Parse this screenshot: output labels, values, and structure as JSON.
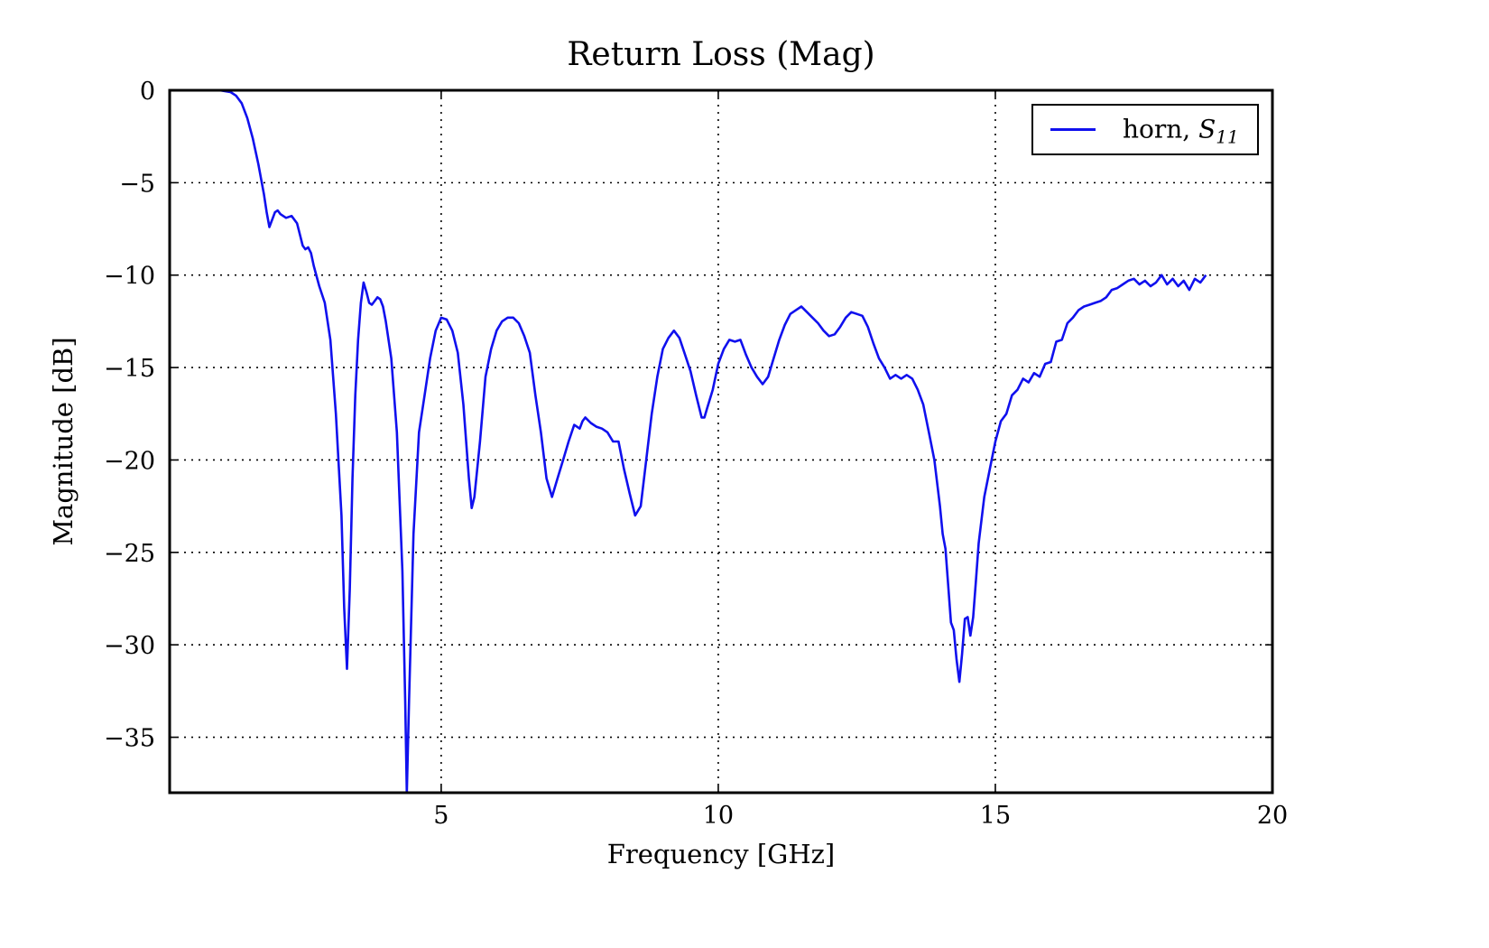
{
  "chart_data": {
    "type": "line",
    "title": "Return Loss (Mag)",
    "xlabel": "Frequency [GHz]",
    "ylabel": "Magnitude [dB]",
    "xlim": [
      0.1,
      20
    ],
    "ylim": [
      -38,
      0
    ],
    "xticks": [
      5,
      10,
      15,
      20
    ],
    "xtick_labels": [
      "5",
      "10",
      "15",
      "20"
    ],
    "yticks": [
      0,
      -5,
      -10,
      -15,
      -20,
      -25,
      -30,
      -35
    ],
    "ytick_labels": [
      "0",
      "−5",
      "−10",
      "−15",
      "−20",
      "−25",
      "−30",
      "−35"
    ],
    "grid": true,
    "legend_position": "top-right",
    "colors": {
      "series": "#1010ee",
      "grid": "#000000",
      "frame": "#000000"
    },
    "series": [
      {
        "name": "horn, S11",
        "legend_label": "horn, ",
        "legend_symbol": "S",
        "legend_subscript": "11",
        "points": [
          [
            0.1,
            0
          ],
          [
            0.5,
            0
          ],
          [
            1.0,
            0
          ],
          [
            1.2,
            -0.1
          ],
          [
            1.3,
            -0.3
          ],
          [
            1.4,
            -0.7
          ],
          [
            1.5,
            -1.5
          ],
          [
            1.6,
            -2.6
          ],
          [
            1.7,
            -4.0
          ],
          [
            1.8,
            -5.6
          ],
          [
            1.85,
            -6.6
          ],
          [
            1.9,
            -7.4
          ],
          [
            1.95,
            -7.0
          ],
          [
            2.0,
            -6.6
          ],
          [
            2.05,
            -6.5
          ],
          [
            2.1,
            -6.7
          ],
          [
            2.2,
            -6.9
          ],
          [
            2.3,
            -6.8
          ],
          [
            2.4,
            -7.2
          ],
          [
            2.45,
            -7.8
          ],
          [
            2.5,
            -8.4
          ],
          [
            2.55,
            -8.6
          ],
          [
            2.6,
            -8.5
          ],
          [
            2.65,
            -8.8
          ],
          [
            2.7,
            -9.5
          ],
          [
            2.8,
            -10.6
          ],
          [
            2.9,
            -11.5
          ],
          [
            3.0,
            -13.5
          ],
          [
            3.1,
            -17.5
          ],
          [
            3.2,
            -23.0
          ],
          [
            3.25,
            -28.0
          ],
          [
            3.3,
            -31.3
          ],
          [
            3.35,
            -27.0
          ],
          [
            3.4,
            -21.0
          ],
          [
            3.45,
            -16.5
          ],
          [
            3.5,
            -13.5
          ],
          [
            3.55,
            -11.5
          ],
          [
            3.6,
            -10.4
          ],
          [
            3.65,
            -10.9
          ],
          [
            3.7,
            -11.5
          ],
          [
            3.75,
            -11.6
          ],
          [
            3.8,
            -11.4
          ],
          [
            3.85,
            -11.2
          ],
          [
            3.9,
            -11.3
          ],
          [
            3.95,
            -11.7
          ],
          [
            4.0,
            -12.5
          ],
          [
            4.1,
            -14.5
          ],
          [
            4.2,
            -18.5
          ],
          [
            4.3,
            -26.0
          ],
          [
            4.35,
            -33.0
          ],
          [
            4.38,
            -38.0
          ],
          [
            4.42,
            -33.0
          ],
          [
            4.5,
            -24.0
          ],
          [
            4.6,
            -18.5
          ],
          [
            4.7,
            -16.5
          ],
          [
            4.8,
            -14.5
          ],
          [
            4.9,
            -13.0
          ],
          [
            5.0,
            -12.3
          ],
          [
            5.1,
            -12.4
          ],
          [
            5.2,
            -13.0
          ],
          [
            5.3,
            -14.2
          ],
          [
            5.4,
            -17.0
          ],
          [
            5.5,
            -21.0
          ],
          [
            5.55,
            -22.6
          ],
          [
            5.6,
            -22.0
          ],
          [
            5.7,
            -19.0
          ],
          [
            5.8,
            -15.5
          ],
          [
            5.9,
            -14.0
          ],
          [
            6.0,
            -13.0
          ],
          [
            6.1,
            -12.5
          ],
          [
            6.2,
            -12.3
          ],
          [
            6.3,
            -12.3
          ],
          [
            6.4,
            -12.6
          ],
          [
            6.5,
            -13.3
          ],
          [
            6.6,
            -14.2
          ],
          [
            6.7,
            -16.5
          ],
          [
            6.8,
            -18.5
          ],
          [
            6.9,
            -21.0
          ],
          [
            7.0,
            -22.0
          ],
          [
            7.1,
            -21.0
          ],
          [
            7.2,
            -20.0
          ],
          [
            7.3,
            -19.0
          ],
          [
            7.4,
            -18.1
          ],
          [
            7.5,
            -18.3
          ],
          [
            7.55,
            -17.9
          ],
          [
            7.6,
            -17.7
          ],
          [
            7.7,
            -18.0
          ],
          [
            7.8,
            -18.2
          ],
          [
            7.9,
            -18.3
          ],
          [
            8.0,
            -18.5
          ],
          [
            8.1,
            -19.0
          ],
          [
            8.2,
            -19.0
          ],
          [
            8.3,
            -20.5
          ],
          [
            8.4,
            -21.8
          ],
          [
            8.5,
            -23.0
          ],
          [
            8.6,
            -22.5
          ],
          [
            8.7,
            -20.0
          ],
          [
            8.8,
            -17.5
          ],
          [
            8.9,
            -15.5
          ],
          [
            9.0,
            -14.0
          ],
          [
            9.1,
            -13.4
          ],
          [
            9.2,
            -13.0
          ],
          [
            9.3,
            -13.4
          ],
          [
            9.4,
            -14.3
          ],
          [
            9.5,
            -15.2
          ],
          [
            9.6,
            -16.5
          ],
          [
            9.7,
            -17.7
          ],
          [
            9.75,
            -17.7
          ],
          [
            9.8,
            -17.2
          ],
          [
            9.9,
            -16.2
          ],
          [
            10.0,
            -14.8
          ],
          [
            10.1,
            -14.0
          ],
          [
            10.2,
            -13.5
          ],
          [
            10.3,
            -13.6
          ],
          [
            10.4,
            -13.5
          ],
          [
            10.5,
            -14.3
          ],
          [
            10.6,
            -15.0
          ],
          [
            10.7,
            -15.5
          ],
          [
            10.8,
            -15.9
          ],
          [
            10.9,
            -15.5
          ],
          [
            11.0,
            -14.5
          ],
          [
            11.1,
            -13.5
          ],
          [
            11.2,
            -12.7
          ],
          [
            11.3,
            -12.1
          ],
          [
            11.4,
            -11.9
          ],
          [
            11.5,
            -11.7
          ],
          [
            11.6,
            -12.0
          ],
          [
            11.7,
            -12.3
          ],
          [
            11.8,
            -12.6
          ],
          [
            11.9,
            -13.0
          ],
          [
            12.0,
            -13.3
          ],
          [
            12.1,
            -13.2
          ],
          [
            12.2,
            -12.8
          ],
          [
            12.3,
            -12.3
          ],
          [
            12.4,
            -12.0
          ],
          [
            12.5,
            -12.1
          ],
          [
            12.6,
            -12.2
          ],
          [
            12.7,
            -12.8
          ],
          [
            12.8,
            -13.7
          ],
          [
            12.9,
            -14.5
          ],
          [
            13.0,
            -15.0
          ],
          [
            13.1,
            -15.6
          ],
          [
            13.2,
            -15.4
          ],
          [
            13.3,
            -15.6
          ],
          [
            13.4,
            -15.4
          ],
          [
            13.5,
            -15.6
          ],
          [
            13.6,
            -16.2
          ],
          [
            13.7,
            -17.0
          ],
          [
            13.8,
            -18.5
          ],
          [
            13.9,
            -20.0
          ],
          [
            14.0,
            -22.5
          ],
          [
            14.05,
            -24.0
          ],
          [
            14.1,
            -24.8
          ],
          [
            14.2,
            -28.8
          ],
          [
            14.25,
            -29.2
          ],
          [
            14.3,
            -30.8
          ],
          [
            14.35,
            -32.0
          ],
          [
            14.4,
            -30.5
          ],
          [
            14.45,
            -28.6
          ],
          [
            14.5,
            -28.5
          ],
          [
            14.55,
            -29.5
          ],
          [
            14.6,
            -28.5
          ],
          [
            14.65,
            -26.5
          ],
          [
            14.7,
            -24.5
          ],
          [
            14.8,
            -22.0
          ],
          [
            14.9,
            -20.5
          ],
          [
            15.0,
            -19.0
          ],
          [
            15.1,
            -17.9
          ],
          [
            15.2,
            -17.5
          ],
          [
            15.3,
            -16.5
          ],
          [
            15.4,
            -16.2
          ],
          [
            15.5,
            -15.6
          ],
          [
            15.6,
            -15.8
          ],
          [
            15.7,
            -15.3
          ],
          [
            15.8,
            -15.5
          ],
          [
            15.9,
            -14.8
          ],
          [
            16.0,
            -14.7
          ],
          [
            16.1,
            -13.6
          ],
          [
            16.2,
            -13.5
          ],
          [
            16.3,
            -12.6
          ],
          [
            16.4,
            -12.3
          ],
          [
            16.5,
            -11.9
          ],
          [
            16.6,
            -11.7
          ],
          [
            16.7,
            -11.6
          ],
          [
            16.8,
            -11.5
          ],
          [
            16.9,
            -11.4
          ],
          [
            17.0,
            -11.2
          ],
          [
            17.1,
            -10.8
          ],
          [
            17.2,
            -10.7
          ],
          [
            17.3,
            -10.5
          ],
          [
            17.4,
            -10.3
          ],
          [
            17.5,
            -10.2
          ],
          [
            17.6,
            -10.5
          ],
          [
            17.7,
            -10.3
          ],
          [
            17.8,
            -10.6
          ],
          [
            17.9,
            -10.4
          ],
          [
            18.0,
            -10.0
          ],
          [
            18.1,
            -10.5
          ],
          [
            18.2,
            -10.2
          ],
          [
            18.3,
            -10.6
          ],
          [
            18.4,
            -10.3
          ],
          [
            18.5,
            -10.8
          ],
          [
            18.6,
            -10.2
          ],
          [
            18.7,
            -10.4
          ],
          [
            18.8,
            -10.0
          ]
        ]
      }
    ]
  }
}
